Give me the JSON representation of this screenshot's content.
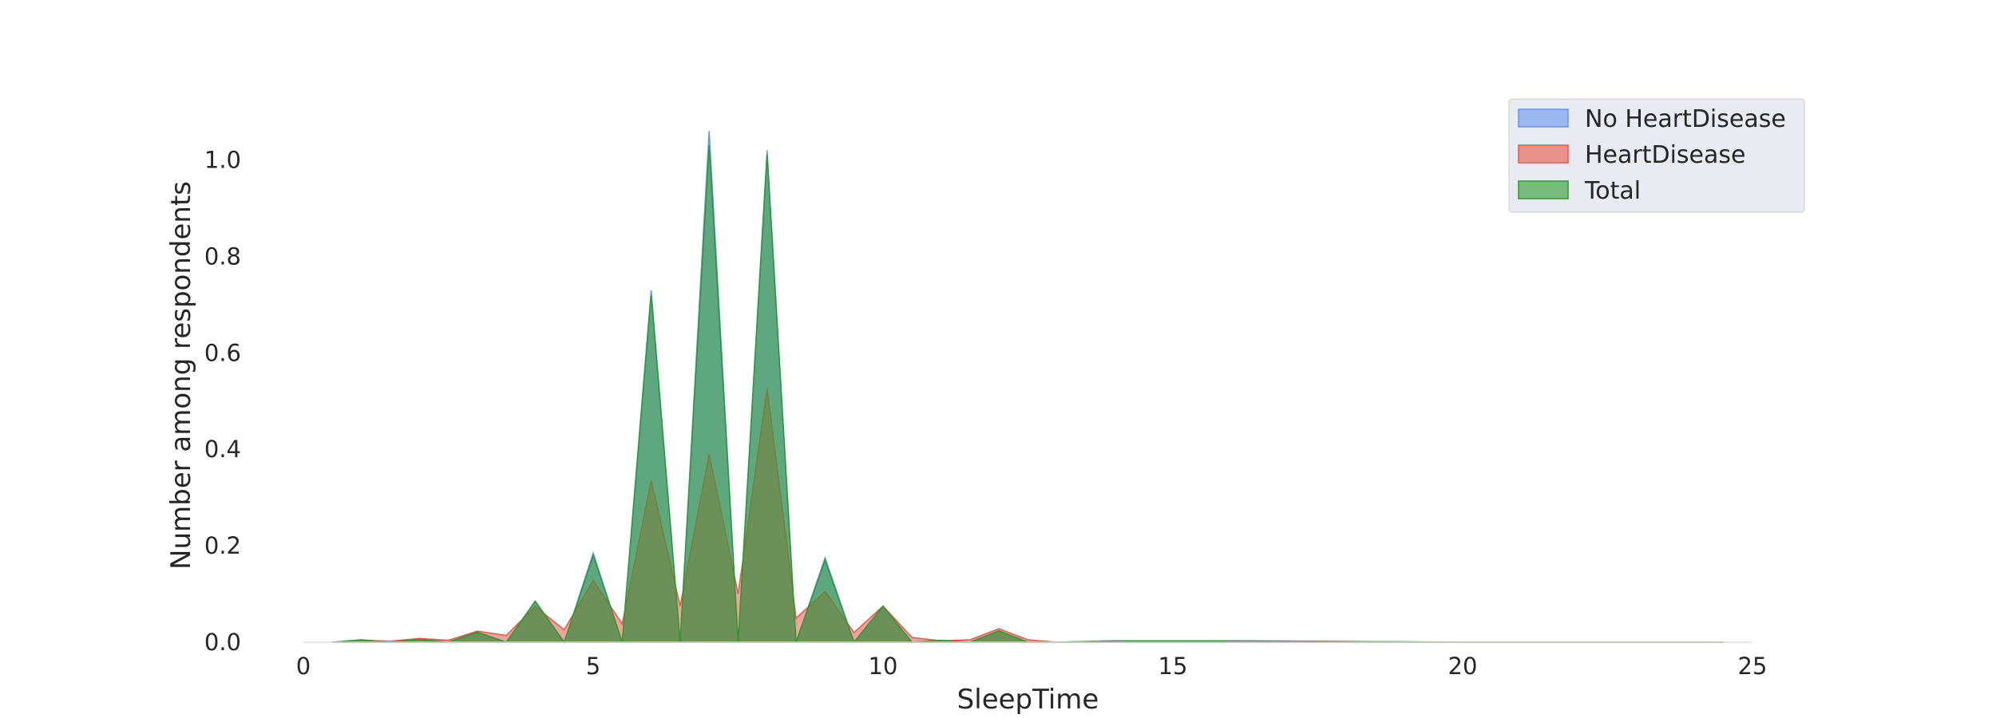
{
  "chart_data": {
    "type": "area",
    "title": "",
    "xlabel": "SleepTime",
    "ylabel": "Number among respondents",
    "xlim": [
      0,
      25
    ],
    "ylim": [
      0,
      1.1
    ],
    "xticks": [
      0,
      5,
      10,
      15,
      20,
      25
    ],
    "yticks": [
      0.0,
      0.2,
      0.4,
      0.6,
      0.8,
      1.0
    ],
    "grid": false,
    "legend_position": "top-right",
    "x": [
      0.5,
      1,
      1.5,
      2,
      2.5,
      3,
      3.5,
      4,
      4.5,
      5,
      5.5,
      6,
      6.5,
      7,
      7.5,
      8,
      8.5,
      9,
      9.5,
      10,
      10.5,
      11,
      11.5,
      12,
      12.5,
      13,
      14,
      15,
      16,
      20,
      24.5
    ],
    "series": [
      {
        "name": "No HeartDisease",
        "color": "#6495ED",
        "values": [
          0,
          0.005,
          0,
          0.006,
          0,
          0.02,
          0,
          0.085,
          0,
          0.185,
          0,
          0.73,
          0,
          1.06,
          0,
          1.02,
          0,
          0.175,
          0,
          0.075,
          0,
          0.004,
          0,
          0.023,
          0,
          0,
          0.003,
          0.003,
          0.003,
          0,
          0
        ]
      },
      {
        "name": "HeartDisease",
        "color": "#E8564A",
        "values": [
          0,
          0.004,
          0.002,
          0.008,
          0.004,
          0.023,
          0.014,
          0.074,
          0.026,
          0.128,
          0.038,
          0.335,
          0.075,
          0.39,
          0.1,
          0.525,
          0.05,
          0.105,
          0.02,
          0.075,
          0.01,
          0.003,
          0.005,
          0.028,
          0.005,
          0,
          0,
          0,
          0,
          0,
          0
        ]
      },
      {
        "name": "Total",
        "color": "#2E9A2E",
        "values": [
          0,
          0.005,
          0,
          0.006,
          0,
          0.021,
          0,
          0.085,
          0,
          0.18,
          0,
          0.72,
          0,
          1.03,
          0,
          1.01,
          0,
          0.17,
          0,
          0.075,
          0,
          0.004,
          0,
          0.024,
          0,
          0,
          0.003,
          0.003,
          0.003,
          0,
          0
        ]
      }
    ]
  }
}
